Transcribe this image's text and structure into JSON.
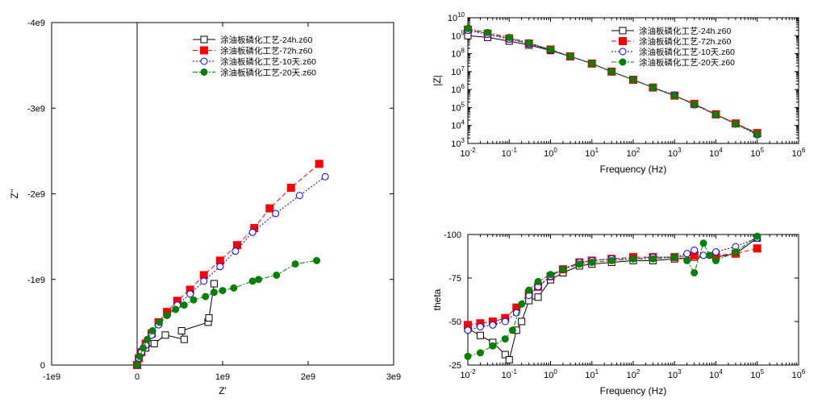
{
  "chart_data": [
    {
      "type": "scatter",
      "xlabel": "Z'",
      "ylabel": "Z''",
      "xlim": [
        -1000000000.0,
        3000000000.0
      ],
      "ylim": [
        0,
        -4000000000.0
      ],
      "x_ticks": [
        {
          "v": -1000000000.0,
          "label": "-1e9"
        },
        {
          "v": 0,
          "label": "0"
        },
        {
          "v": 1000000000.0,
          "label": "1e9"
        },
        {
          "v": 2000000000.0,
          "label": "2e9"
        },
        {
          "v": 3000000000.0,
          "label": "3e9"
        }
      ],
      "y_ticks": [
        {
          "v": 0,
          "label": "0"
        },
        {
          "v": -1000000000.0,
          "label": "-1e9"
        },
        {
          "v": -2000000000.0,
          "label": "-2e9"
        },
        {
          "v": -3000000000.0,
          "label": "-3e9"
        },
        {
          "v": -4000000000.0,
          "label": "-4e9"
        }
      ],
      "legend_position": "top-right",
      "series": [
        {
          "name": "涂油板磷化工艺-24h.z60",
          "color": "#000000",
          "marker": "open-square",
          "x": [
            0,
            20000000.0,
            50000000.0,
            100000000.0,
            200000000.0,
            330000000.0,
            550000000.0,
            520000000.0,
            830000000.0,
            840000000.0,
            900000000.0
          ],
          "y": [
            0,
            -80000000.0,
            -150000000.0,
            -200000000.0,
            -250000000.0,
            -350000000.0,
            -300000000.0,
            -400000000.0,
            -500000000.0,
            -550000000.0,
            -950000000.0
          ]
        },
        {
          "name": "涂油板磷化工艺-72h.z60",
          "color": "#ff0000",
          "marker": "filled-square",
          "x": [
            0,
            20000000.0,
            50000000.0,
            100000000.0,
            170000000.0,
            250000000.0,
            350000000.0,
            470000000.0,
            620000000.0,
            780000000.0,
            970000000.0,
            1170000000.0,
            1370000000.0,
            1550000000.0,
            1800000000.0,
            2130000000.0
          ],
          "y": [
            0,
            -80000000.0,
            -150000000.0,
            -250000000.0,
            -370000000.0,
            -500000000.0,
            -620000000.0,
            -750000000.0,
            -880000000.0,
            -1050000000.0,
            -1220000000.0,
            -1400000000.0,
            -1600000000.0,
            -1830000000.0,
            -2070000000.0,
            -2350000000.0
          ]
        },
        {
          "name": "涂油板磷化工艺-10天.z60",
          "color": "#0000ff",
          "marker": "open-circle",
          "x": [
            0,
            20000000.0,
            50000000.0,
            100000000.0,
            170000000.0,
            250000000.0,
            350000000.0,
            470000000.0,
            620000000.0,
            780000000.0,
            970000000.0,
            1150000000.0,
            1350000000.0,
            1620000000.0,
            1900000000.0,
            2200000000.0
          ],
          "y": [
            0,
            -80000000.0,
            -150000000.0,
            -230000000.0,
            -350000000.0,
            -470000000.0,
            -580000000.0,
            -700000000.0,
            -830000000.0,
            -980000000.0,
            -1150000000.0,
            -1330000000.0,
            -1550000000.0,
            -1770000000.0,
            -1980000000.0,
            -2200000000.0
          ]
        },
        {
          "name": "涂油板磷化工艺-20天.z60",
          "color": "#008000",
          "marker": "filled-circle",
          "x": [
            0,
            30000000.0,
            70000000.0,
            120000000.0,
            180000000.0,
            260000000.0,
            350000000.0,
            450000000.0,
            550000000.0,
            660000000.0,
            800000000.0,
            900000000.0,
            1000000000.0,
            1130000000.0,
            1350000000.0,
            1420000000.0,
            1630000000.0,
            1850000000.0,
            2100000000.0
          ],
          "y": [
            0,
            -100000000.0,
            -200000000.0,
            -300000000.0,
            -400000000.0,
            -500000000.0,
            -580000000.0,
            -650000000.0,
            -700000000.0,
            -760000000.0,
            -800000000.0,
            -850000000.0,
            -870000000.0,
            -900000000.0,
            -980000000.0,
            -1000000000.0,
            -1050000000.0,
            -1180000000.0,
            -1220000000.0
          ]
        }
      ]
    },
    {
      "type": "scatter",
      "xlabel": "Frequency (Hz)",
      "ylabel": "|Z|",
      "x_scale": "log",
      "y_scale": "log",
      "xlim": [
        0.01,
        1000000
      ],
      "ylim": [
        1000,
        10000000000
      ],
      "x_ticks": [
        {
          "base": "10",
          "exp": "-2"
        },
        {
          "base": "10",
          "exp": "-1"
        },
        {
          "base": "10",
          "exp": "0"
        },
        {
          "base": "10",
          "exp": "1"
        },
        {
          "base": "10",
          "exp": "2"
        },
        {
          "base": "10",
          "exp": "3"
        },
        {
          "base": "10",
          "exp": "4"
        },
        {
          "base": "10",
          "exp": "5"
        },
        {
          "base": "10",
          "exp": "6"
        }
      ],
      "y_ticks": [
        {
          "base": "10",
          "exp": "3"
        },
        {
          "base": "10",
          "exp": "4"
        },
        {
          "base": "10",
          "exp": "5"
        },
        {
          "base": "10",
          "exp": "6"
        },
        {
          "base": "10",
          "exp": "7"
        },
        {
          "base": "10",
          "exp": "8"
        },
        {
          "base": "10",
          "exp": "9"
        },
        {
          "base": "10",
          "exp": "10"
        }
      ],
      "legend_position": "top-right",
      "series": [
        {
          "name": "涂油板磷化工艺-24h.z60",
          "color": "#000000",
          "marker": "open-square",
          "x": [
            0.01,
            0.03,
            0.1,
            0.3,
            1,
            3,
            10,
            30,
            100,
            300,
            1000,
            3000,
            10000,
            30000,
            100000
          ],
          "y": [
            1000000000.0,
            800000000.0,
            500000000.0,
            300000000.0,
            150000000.0,
            70000000.0,
            28000000.0,
            10000000.0,
            3500000.0,
            1300000.0,
            450000.0,
            160000.0,
            40000.0,
            13000.0,
            3500.0
          ]
        },
        {
          "name": "涂油板磷化工艺-72h.z60",
          "color": "#ff0000",
          "marker": "filled-square",
          "x": [
            0.01,
            0.03,
            0.1,
            0.3,
            1,
            3,
            10,
            30,
            100,
            300,
            1000,
            3000,
            10000,
            30000,
            100000
          ],
          "y": [
            2200000000.0,
            1300000000.0,
            700000000.0,
            370000000.0,
            170000000.0,
            70000000.0,
            28000000.0,
            10000000.0,
            3500000.0,
            1300000.0,
            460000.0,
            160000.0,
            42000.0,
            13000.0,
            3800.0
          ]
        },
        {
          "name": "涂油板磷化工艺-10天.z60",
          "color": "#0000ff",
          "marker": "open-circle",
          "x": [
            0.01,
            0.03,
            0.1,
            0.3,
            1,
            3,
            10,
            30,
            100,
            300,
            1000,
            3000,
            10000,
            30000,
            100000
          ],
          "y": [
            2000000000.0,
            1200000000.0,
            650000000.0,
            350000000.0,
            160000000.0,
            70000000.0,
            28000000.0,
            10000000.0,
            3600000.0,
            1300000.0,
            500000.0,
            140000.0,
            40000.0,
            12000.0,
            3000.0
          ]
        },
        {
          "name": "涂油板磷化工艺-20天.z60",
          "color": "#008000",
          "marker": "filled-circle",
          "x": [
            0.01,
            0.03,
            0.1,
            0.3,
            1,
            3,
            10,
            30,
            100,
            300,
            1000,
            3000,
            10000,
            30000,
            100000
          ],
          "y": [
            2500000000.0,
            1500000000.0,
            800000000.0,
            400000000.0,
            170000000.0,
            70000000.0,
            28000000.0,
            10000000.0,
            3500000.0,
            1300000.0,
            450000.0,
            150000.0,
            40000.0,
            12000.0,
            3300.0
          ]
        }
      ]
    },
    {
      "type": "scatter",
      "xlabel": "Frequency (Hz)",
      "ylabel": "theta",
      "x_scale": "log",
      "xlim": [
        0.01,
        1000000
      ],
      "ylim": [
        -25,
        -100
      ],
      "x_ticks": [
        {
          "base": "10",
          "exp": "-2"
        },
        {
          "base": "10",
          "exp": "-1"
        },
        {
          "base": "10",
          "exp": "0"
        },
        {
          "base": "10",
          "exp": "1"
        },
        {
          "base": "10",
          "exp": "2"
        },
        {
          "base": "10",
          "exp": "3"
        },
        {
          "base": "10",
          "exp": "4"
        },
        {
          "base": "10",
          "exp": "5"
        },
        {
          "base": "10",
          "exp": "6"
        }
      ],
      "y_ticks": [
        {
          "v": -25,
          "label": "-25"
        },
        {
          "v": -50,
          "label": "-50"
        },
        {
          "v": -75,
          "label": "-75"
        },
        {
          "v": -100,
          "label": "-100"
        }
      ],
      "series": [
        {
          "name": "涂油板磷化工艺-24h.z60",
          "color": "#000000",
          "marker": "open-square",
          "x": [
            0.01,
            0.02,
            0.04,
            0.08,
            0.1,
            0.15,
            0.2,
            0.3,
            0.5,
            1,
            2,
            5,
            10,
            30,
            100,
            300,
            1000,
            3000,
            10000,
            30000,
            100000
          ],
          "y": [
            -46,
            -42,
            -38,
            -31,
            -28,
            -45,
            -50,
            -62,
            -64,
            -74,
            -78,
            -82,
            -83,
            -84,
            -85,
            -85,
            -86,
            -87,
            -87,
            -89,
            -98
          ]
        },
        {
          "name": "涂油板磷化工艺-72h.z60",
          "color": "#ff0000",
          "marker": "filled-square",
          "x": [
            0.01,
            0.02,
            0.04,
            0.08,
            0.15,
            0.3,
            0.5,
            1,
            2,
            5,
            10,
            30,
            100,
            300,
            1000,
            3000,
            10000,
            30000,
            100000
          ],
          "y": [
            -48,
            -49,
            -50,
            -52,
            -58,
            -66,
            -70,
            -76,
            -80,
            -84,
            -85,
            -86,
            -87,
            -87,
            -87,
            -88,
            -88,
            -89,
            -92
          ]
        },
        {
          "name": "涂油板磷化工艺-10天.z60",
          "color": "#0000ff",
          "marker": "open-circle",
          "x": [
            0.01,
            0.02,
            0.04,
            0.08,
            0.15,
            0.3,
            0.5,
            1,
            2,
            5,
            10,
            30,
            100,
            300,
            1000,
            2000,
            3000,
            5000,
            10000,
            30000,
            100000
          ],
          "y": [
            -45,
            -47,
            -48,
            -50,
            -55,
            -65,
            -70,
            -76,
            -80,
            -84,
            -85,
            -86,
            -86,
            -87,
            -87,
            -89,
            -91,
            -88,
            -90,
            -93,
            -98
          ]
        },
        {
          "name": "涂油板磷化工艺-20天.z60",
          "color": "#008000",
          "marker": "filled-circle",
          "x": [
            0.01,
            0.02,
            0.04,
            0.08,
            0.12,
            0.2,
            0.3,
            0.5,
            1,
            2,
            5,
            10,
            30,
            100,
            300,
            1000,
            2000,
            3000,
            5000,
            7000,
            10000,
            30000,
            100000
          ],
          "y": [
            -30,
            -32,
            -36,
            -40,
            -45,
            -60,
            -68,
            -73,
            -77,
            -80,
            -83,
            -84,
            -85,
            -86,
            -86,
            -87,
            -85,
            -78,
            -95,
            -88,
            -85,
            -90,
            -99
          ]
        }
      ]
    }
  ]
}
